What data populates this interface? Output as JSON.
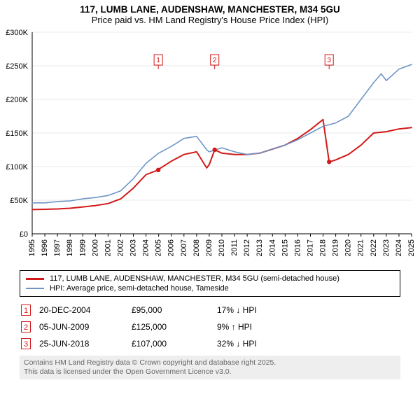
{
  "title_line1": "117, LUMB LANE, AUDENSHAW, MANCHESTER, M34 5GU",
  "title_line2": "Price paid vs. HM Land Registry's House Price Index (HPI)",
  "chart": {
    "type": "line",
    "background_color": "#ffffff",
    "grid_color": "#e8e8e8",
    "axis_color": "#000000",
    "x": {
      "min": 1995,
      "max": 2025,
      "tick_step": 1
    },
    "y": {
      "min": 0,
      "max": 300000,
      "tick_step": 50000,
      "prefix": "£",
      "suffix": "K",
      "divisor": 1000
    },
    "series": [
      {
        "name": "property_price",
        "label": "117, LUMB LANE, AUDENSHAW, MANCHESTER, M34 5GU (semi-detached house)",
        "color": "#d21919",
        "line_width": 2,
        "data": [
          [
            1995,
            36000
          ],
          [
            1996,
            36500
          ],
          [
            1997,
            37000
          ],
          [
            1998,
            38000
          ],
          [
            1999,
            40000
          ],
          [
            2000,
            42000
          ],
          [
            2001,
            45000
          ],
          [
            2002,
            52000
          ],
          [
            2003,
            68000
          ],
          [
            2004,
            88000
          ],
          [
            2004.97,
            95000
          ],
          [
            2005,
            96000
          ],
          [
            2006,
            108000
          ],
          [
            2007,
            118000
          ],
          [
            2008,
            122000
          ],
          [
            2008.8,
            98000
          ],
          [
            2009,
            103000
          ],
          [
            2009.43,
            125000
          ],
          [
            2010,
            120000
          ],
          [
            2011,
            118000
          ],
          [
            2012,
            118000
          ],
          [
            2013,
            120000
          ],
          [
            2014,
            126000
          ],
          [
            2015,
            132000
          ],
          [
            2016,
            142000
          ],
          [
            2017,
            155000
          ],
          [
            2018,
            170000
          ],
          [
            2018.48,
            107000
          ],
          [
            2019,
            110000
          ],
          [
            2020,
            118000
          ],
          [
            2021,
            132000
          ],
          [
            2022,
            150000
          ],
          [
            2023,
            152000
          ],
          [
            2024,
            156000
          ],
          [
            2025,
            158000
          ]
        ]
      },
      {
        "name": "hpi",
        "label": "HPI: Average price, semi-detached house, Tameside",
        "color": "#6d96c4",
        "line_width": 1.6,
        "data": [
          [
            1995,
            46000
          ],
          [
            1996,
            46000
          ],
          [
            1997,
            48000
          ],
          [
            1998,
            49000
          ],
          [
            1999,
            52000
          ],
          [
            2000,
            54000
          ],
          [
            2001,
            57000
          ],
          [
            2002,
            64000
          ],
          [
            2003,
            82000
          ],
          [
            2004,
            105000
          ],
          [
            2005,
            120000
          ],
          [
            2006,
            130000
          ],
          [
            2007,
            142000
          ],
          [
            2008,
            145000
          ],
          [
            2008.8,
            125000
          ],
          [
            2009,
            122000
          ],
          [
            2010,
            128000
          ],
          [
            2011,
            122000
          ],
          [
            2012,
            118000
          ],
          [
            2013,
            120000
          ],
          [
            2014,
            126000
          ],
          [
            2015,
            132000
          ],
          [
            2016,
            140000
          ],
          [
            2017,
            150000
          ],
          [
            2018,
            160000
          ],
          [
            2019,
            165000
          ],
          [
            2020,
            175000
          ],
          [
            2021,
            200000
          ],
          [
            2022,
            225000
          ],
          [
            2022.6,
            238000
          ],
          [
            2023,
            228000
          ],
          [
            2024,
            245000
          ],
          [
            2025,
            252000
          ]
        ]
      }
    ],
    "sale_markers": [
      {
        "n": "1",
        "x": 2004.97,
        "y": 95000
      },
      {
        "n": "2",
        "x": 2009.43,
        "y": 125000
      },
      {
        "n": "3",
        "x": 2018.48,
        "y": 107000
      }
    ],
    "marker_color": "#d21919",
    "marker_radius": 3.2,
    "flag_box": {
      "w": 12,
      "h": 15,
      "border": "#d21919",
      "text": "#d21919",
      "fill": "#ffffff",
      "fontsize": 10
    }
  },
  "legend": {
    "items": [
      {
        "color": "#d21919",
        "text": "117, LUMB LANE, AUDENSHAW, MANCHESTER, M34 5GU (semi-detached house)"
      },
      {
        "color": "#6d96c4",
        "text": "HPI: Average price, semi-detached house, Tameside"
      }
    ]
  },
  "events": {
    "arrow_down": "↓",
    "arrow_up": "↑",
    "hpi_label": "HPI",
    "rows": [
      {
        "n": "1",
        "date": "20-DEC-2004",
        "price": "£95,000",
        "pct": "17%",
        "dir": "down"
      },
      {
        "n": "2",
        "date": "05-JUN-2009",
        "price": "£125,000",
        "pct": "9%",
        "dir": "up"
      },
      {
        "n": "3",
        "date": "25-JUN-2018",
        "price": "£107,000",
        "pct": "32%",
        "dir": "down"
      }
    ]
  },
  "footer_line1": "Contains HM Land Registry data © Crown copyright and database right 2025.",
  "footer_line2": "This data is licensed under the Open Government Licence v3.0."
}
